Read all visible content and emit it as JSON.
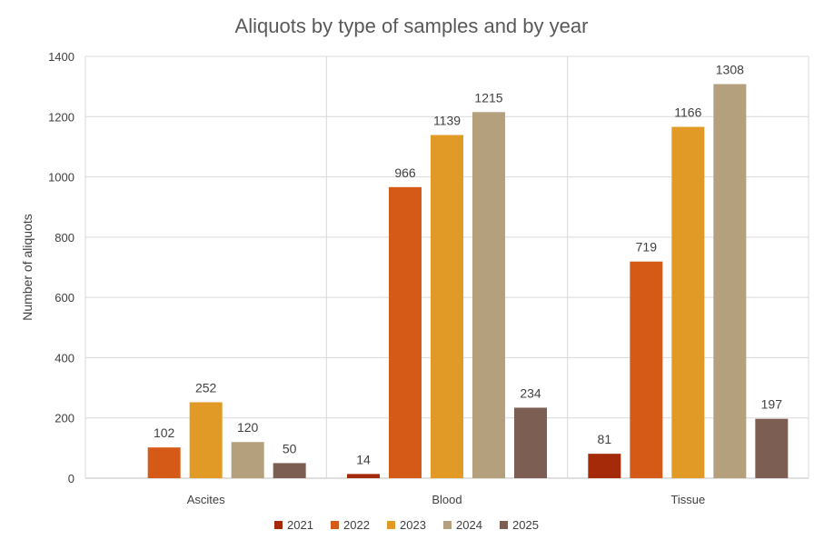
{
  "chart_data": {
    "type": "bar",
    "title": "Aliquots by type of samples and by year",
    "ylabel": "Number of aliquots",
    "xlabel": "",
    "ylim": [
      0,
      1400
    ],
    "yticks": [
      0,
      200,
      400,
      600,
      800,
      1000,
      1200,
      1400
    ],
    "categories": [
      "Ascites",
      "Blood",
      "Tissue"
    ],
    "series": [
      {
        "name": "2021",
        "color": "#a52a0a",
        "values": [
          null,
          14,
          81
        ]
      },
      {
        "name": "2022",
        "color": "#d65a17",
        "values": [
          102,
          966,
          719
        ]
      },
      {
        "name": "2023",
        "color": "#e29a27",
        "values": [
          252,
          1139,
          1166
        ]
      },
      {
        "name": "2024",
        "color": "#b4a07d",
        "values": [
          120,
          1215,
          1308
        ]
      },
      {
        "name": "2025",
        "color": "#7d5e52",
        "values": [
          50,
          234,
          197
        ]
      }
    ],
    "grid": true,
    "legend_position": "bottom"
  }
}
